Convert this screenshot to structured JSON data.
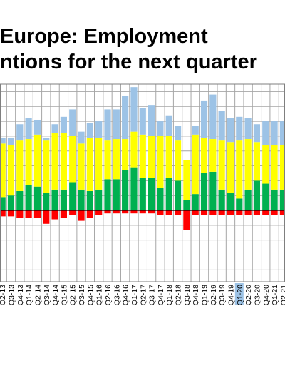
{
  "chart_data": {
    "type": "bar",
    "stacked": true,
    "title_lines": [
      "Europe: Employment",
      "ntions for the next quarter"
    ],
    "categories": [
      "Q2-13",
      "Q3-13",
      "Q4-13",
      "Q1-14",
      "Q2-14",
      "Q3-14",
      "Q4-14",
      "Q1-15",
      "Q2-15",
      "Q3-15",
      "Q4-15",
      "Q1-16",
      "Q2-16",
      "Q3-16",
      "Q4-16",
      "Q1-17",
      "Q2-17",
      "Q3-17",
      "Q4-17",
      "Q1-18",
      "Q2-18",
      "Q3-18",
      "Q4-18",
      "Q1-19",
      "Q2-19",
      "Q3-19",
      "Q4-19",
      "Q1-20",
      "Q2-20",
      "Q3-20",
      "Q4-20",
      "Q1-21",
      "Q2-21"
    ],
    "visible_tick_labels": [
      "Q2-13",
      "Q3-13",
      "Q4-13",
      "Q1-14",
      "Q2-14",
      "Q3-14",
      "Q4-14",
      "Q1-15",
      "Q2-15",
      "Q3-15",
      "Q4-15",
      "Q1-16",
      "Q2-16",
      "Q3-16",
      "Q4-16",
      "Q1-17",
      "Q2-17",
      "Q3-17",
      "Q4-17",
      "Q1-18",
      "Q2-18",
      "Q3-18",
      "Q4-18",
      "Q1-19",
      "Q2-19",
      "Q3-19",
      "Q4-19",
      "Q1-20",
      "Q2-20",
      "Q3-20",
      "Q4-20",
      "Q1-21",
      "Q2-21"
    ],
    "series": [
      {
        "color": "#00b050",
        "values": [
          9,
          10,
          13,
          17,
          16,
          12,
          14,
          14,
          19,
          14,
          13,
          14,
          21,
          21,
          27,
          29,
          22,
          22,
          15,
          22,
          20,
          7,
          11,
          25,
          26,
          14,
          12,
          8,
          14,
          20,
          18,
          14,
          14
        ]
      },
      {
        "color": "#ffff00",
        "values": [
          36,
          34,
          34,
          31,
          35,
          35,
          38,
          38,
          31,
          31,
          36,
          35,
          26,
          27,
          21,
          24,
          29,
          28,
          35,
          28,
          27,
          27,
          40,
          24,
          22,
          33,
          34,
          39,
          34,
          26,
          26,
          30,
          30
        ]
      },
      {
        "color": "#ff0000",
        "values": [
          -4,
          -4,
          -5,
          -5,
          -5,
          -9,
          -6,
          -5,
          -3,
          -7,
          -5,
          -3,
          -2,
          -2,
          -2,
          -2,
          -2,
          -2,
          -3,
          -3,
          -3,
          -13,
          -3,
          -3,
          -3,
          -3,
          -3,
          -3,
          -3,
          -3,
          -3,
          -3,
          -3
        ]
      },
      {
        "color": "#9dc3e6",
        "values": [
          4,
          5,
          11,
          14,
          10,
          2,
          6,
          11,
          18,
          8,
          10,
          11,
          21,
          20,
          29,
          30,
          18,
          21,
          10,
          14,
          10,
          0,
          6,
          25,
          30,
          20,
          16,
          16,
          14,
          12,
          16,
          16,
          16
        ]
      }
    ],
    "ylim": [
      -48,
      85
    ],
    "grid": true,
    "highlight_category": "Q1-20",
    "highlight_color": "#9dc3e6"
  }
}
